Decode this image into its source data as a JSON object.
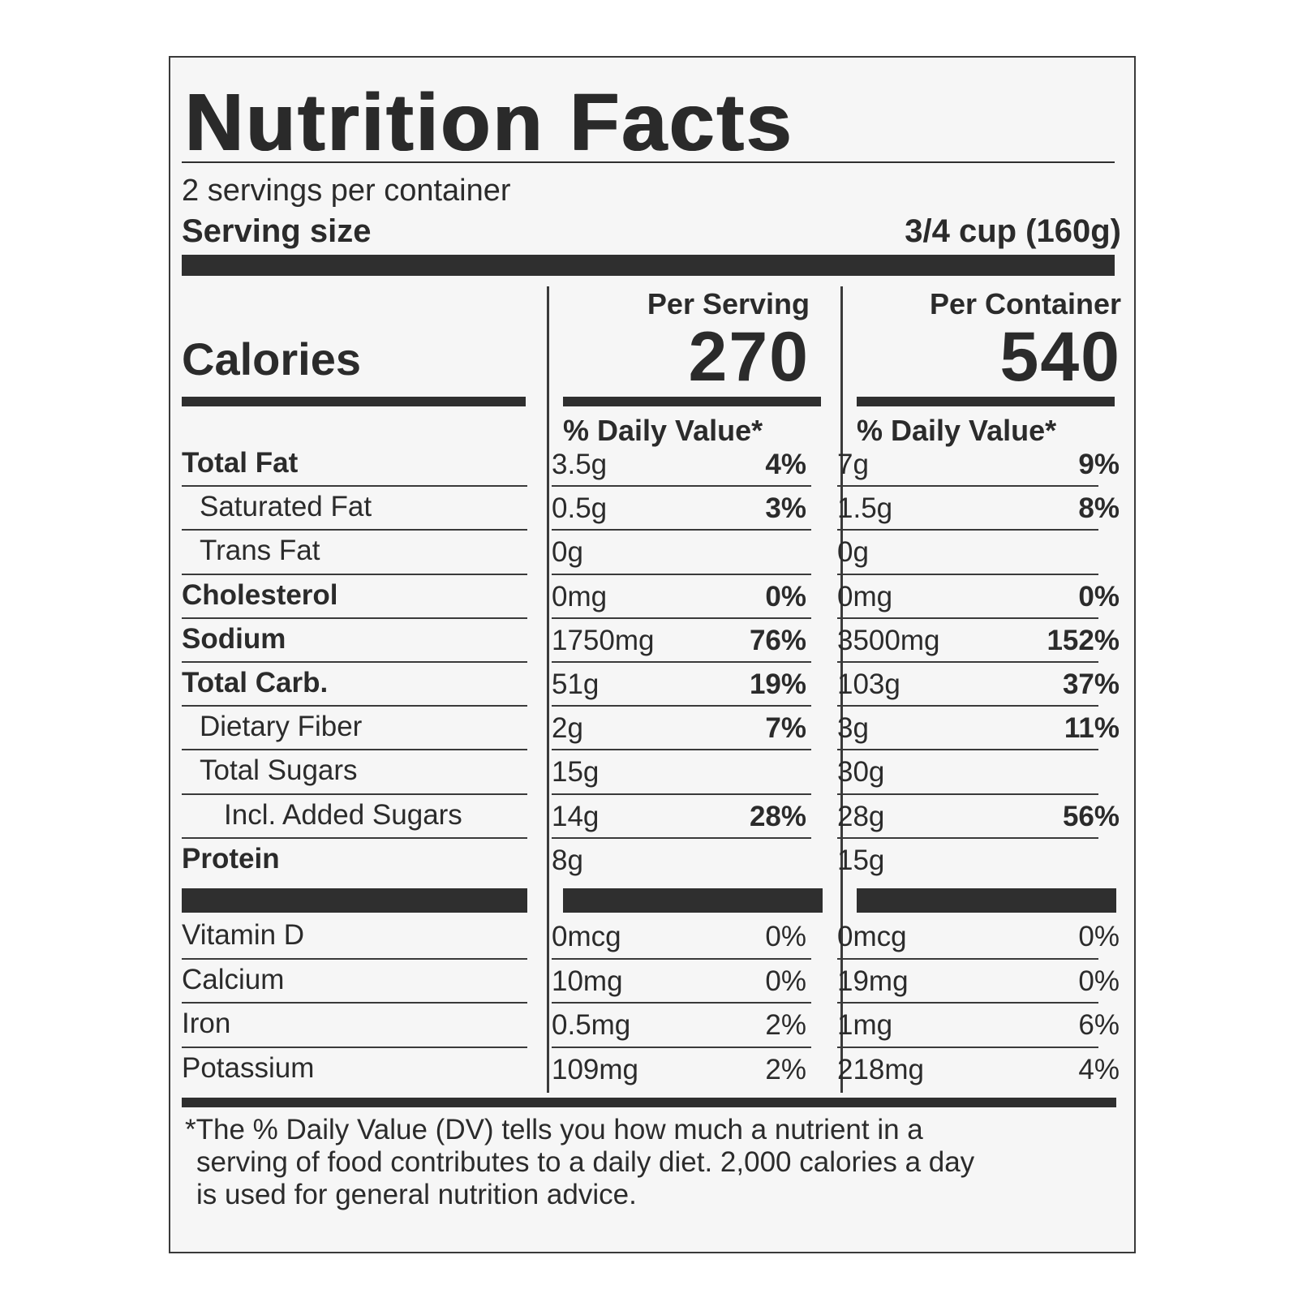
{
  "title": "Nutrition Facts",
  "servings_per_container": "2 servings per container",
  "serving_size_label": "Serving size",
  "serving_size_value": "3/4 cup (160g)",
  "calories_label": "Calories",
  "columns": [
    {
      "header": "Per Serving",
      "calories": "270",
      "dv_header": "% Daily Value*"
    },
    {
      "header": "Per Container",
      "calories": "540",
      "dv_header": "% Daily Value*"
    }
  ],
  "nutrients": [
    {
      "name": "Total Fat",
      "bold": true,
      "indent": 0,
      "serving": {
        "amount": "3.5g",
        "dv": "4%"
      },
      "container": {
        "amount": "7g",
        "dv": "9%"
      }
    },
    {
      "name": "Saturated Fat",
      "bold": false,
      "indent": 1,
      "serving": {
        "amount": "0.5g",
        "dv": "3%"
      },
      "container": {
        "amount": "1.5g",
        "dv": "8%"
      }
    },
    {
      "name": "Trans Fat",
      "bold": false,
      "indent": 1,
      "serving": {
        "amount": "0g",
        "dv": ""
      },
      "container": {
        "amount": "0g",
        "dv": ""
      }
    },
    {
      "name": "Cholesterol",
      "bold": true,
      "indent": 0,
      "serving": {
        "amount": "0mg",
        "dv": "0%"
      },
      "container": {
        "amount": "0mg",
        "dv": "0%"
      }
    },
    {
      "name": "Sodium",
      "bold": true,
      "indent": 0,
      "serving": {
        "amount": "1750mg",
        "dv": "76%"
      },
      "container": {
        "amount": "3500mg",
        "dv": "152%"
      }
    },
    {
      "name": "Total Carb.",
      "bold": true,
      "indent": 0,
      "serving": {
        "amount": "51g",
        "dv": "19%"
      },
      "container": {
        "amount": "103g",
        "dv": "37%"
      }
    },
    {
      "name": "Dietary Fiber",
      "bold": false,
      "indent": 1,
      "serving": {
        "amount": "2g",
        "dv": "7%"
      },
      "container": {
        "amount": "3g",
        "dv": "11%"
      }
    },
    {
      "name": "Total Sugars",
      "bold": false,
      "indent": 1,
      "serving": {
        "amount": "15g",
        "dv": ""
      },
      "container": {
        "amount": "30g",
        "dv": ""
      }
    },
    {
      "name": "Incl. Added Sugars",
      "bold": false,
      "indent": 2,
      "serving": {
        "amount": "14g",
        "dv": "28%"
      },
      "container": {
        "amount": "28g",
        "dv": "56%"
      }
    },
    {
      "name": "Protein",
      "bold": true,
      "indent": 0,
      "serving": {
        "amount": "8g",
        "dv": ""
      },
      "container": {
        "amount": "15g",
        "dv": ""
      }
    }
  ],
  "vitamins": [
    {
      "name": "Vitamin D",
      "serving": {
        "amount": "0mcg",
        "dv": "0%"
      },
      "container": {
        "amount": "0mcg",
        "dv": "0%"
      }
    },
    {
      "name": "Calcium",
      "serving": {
        "amount": "10mg",
        "dv": "0%"
      },
      "container": {
        "amount": "19mg",
        "dv": "0%"
      }
    },
    {
      "name": "Iron",
      "serving": {
        "amount": "0.5mg",
        "dv": "2%"
      },
      "container": {
        "amount": "1mg",
        "dv": "6%"
      }
    },
    {
      "name": "Potassium",
      "serving": {
        "amount": "109mg",
        "dv": "2%"
      },
      "container": {
        "amount": "218mg",
        "dv": "4%"
      }
    }
  ],
  "footnote": [
    "*The % Daily Value (DV) tells you how much a nutrient in a",
    "serving of food contributes to a daily diet. 2,000 calories a day",
    "is used for general nutrition advice."
  ]
}
